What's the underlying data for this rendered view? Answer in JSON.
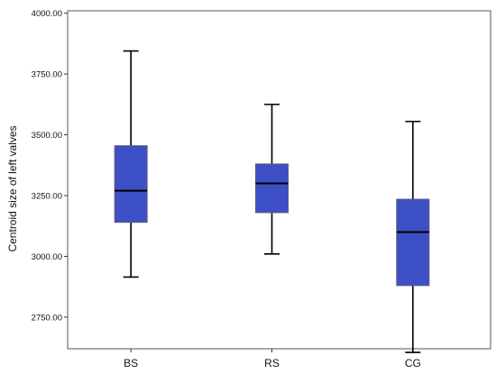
{
  "chart_data": {
    "type": "box",
    "title": "",
    "xlabel": "",
    "ylabel": "Centroid size of left valves",
    "ylim": [
      2620,
      4010
    ],
    "yticks": [
      "2750.00",
      "3000.00",
      "3250.00",
      "3500.00",
      "3750.00",
      "4000.00"
    ],
    "categories": [
      "BS",
      "RS",
      "CG"
    ],
    "boxes": [
      {
        "category": "BS",
        "min": 2915,
        "q1": 3140,
        "median": 3270,
        "q3": 3455,
        "max": 3845
      },
      {
        "category": "RS",
        "min": 3010,
        "q1": 3180,
        "median": 3300,
        "q3": 3380,
        "max": 3625
      },
      {
        "category": "CG",
        "min": 2605,
        "q1": 2880,
        "median": 3100,
        "q3": 3235,
        "max": 3555
      }
    ],
    "box_color": "#3d4fc4",
    "grid": false,
    "legend": "none"
  }
}
